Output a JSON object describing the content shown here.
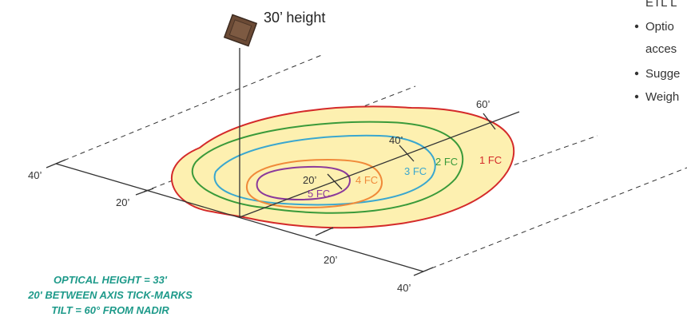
{
  "fixture": {
    "height_label": "30’ height"
  },
  "axis_labels": {
    "left_40": "40’",
    "left_20": "20’",
    "bottom_20": "20’",
    "bottom_40": "40’",
    "right_60": "60’",
    "center_40": "40’",
    "center_20": "20’"
  },
  "contours": [
    {
      "label": "1 FC",
      "color": "#d42a2a"
    },
    {
      "label": "2 FC",
      "color": "#3a9a3a"
    },
    {
      "label": "3 FC",
      "color": "#3aa7cf"
    },
    {
      "label": "4 FC",
      "color": "#f08a3a"
    },
    {
      "label": "5 FC",
      "color": "#8b3a9b"
    }
  ],
  "colors": {
    "fill": "#fdf0b0",
    "spec_text": "#1e9a8a",
    "fixture": "#6b4a35"
  },
  "spec": {
    "line1": "OPTICAL HEIGHT = 33'",
    "line2": "20' BETWEEN AXIS TICK-MARKS",
    "line3": "TILT = 60° FROM NADIR"
  },
  "sidebar": {
    "line0": "ETL L",
    "line1": "Optio",
    "line2": "acces",
    "line3": "Sugge",
    "line4": "Weigh"
  }
}
